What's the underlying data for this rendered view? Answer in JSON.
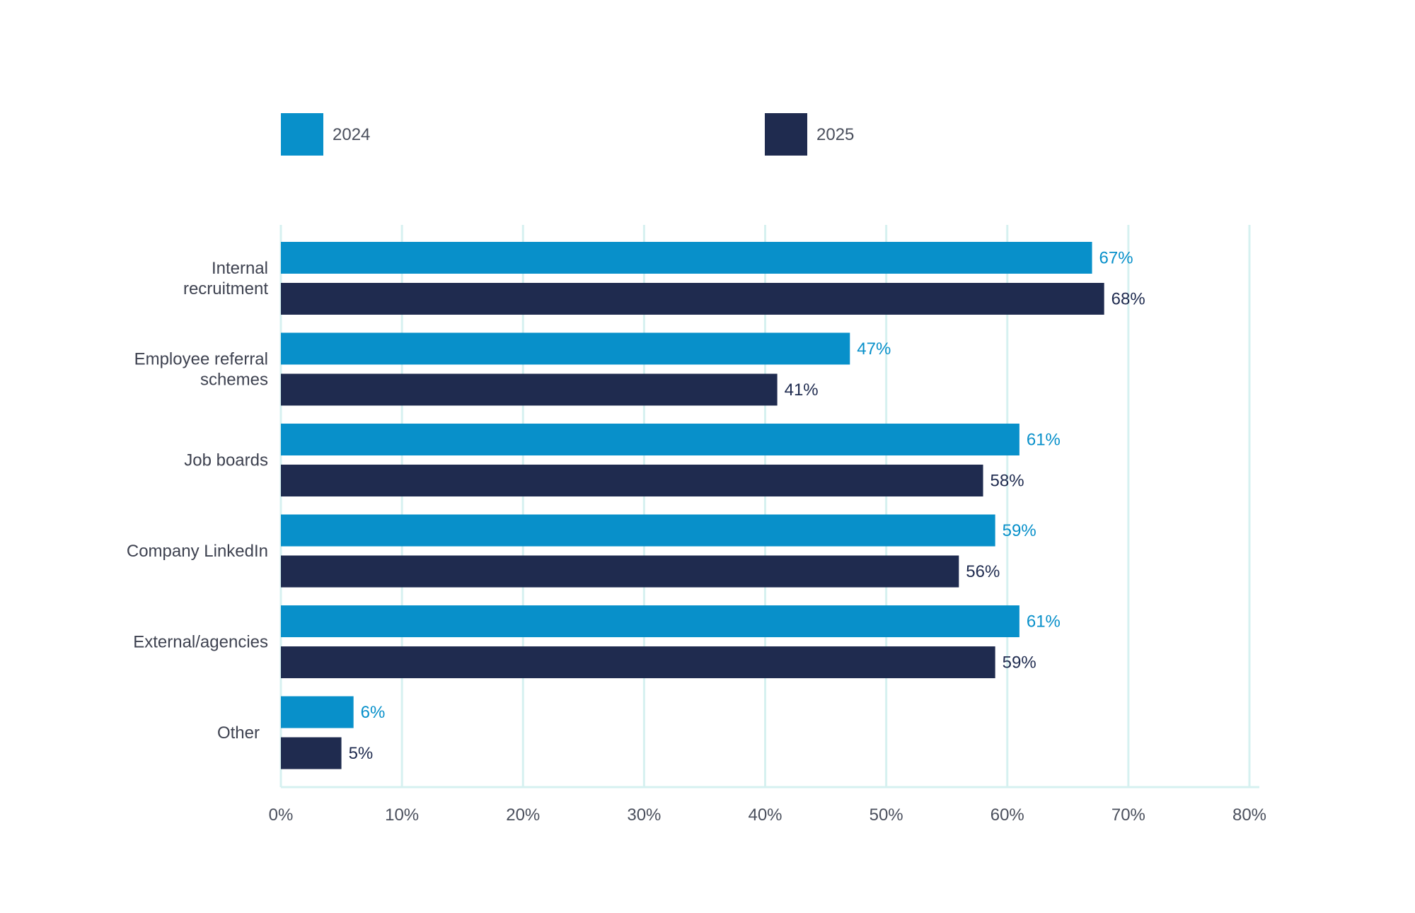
{
  "chart_data": {
    "type": "bar",
    "orientation": "horizontal",
    "categories": [
      [
        "Internal",
        "recruitment"
      ],
      [
        "Employee referral",
        "schemes"
      ],
      [
        "Job boards"
      ],
      [
        "Company LinkedIn"
      ],
      [
        "External/agencies"
      ],
      [
        "Other"
      ]
    ],
    "series": [
      {
        "name": "2024",
        "color": "#0890CA",
        "values": [
          67,
          47,
          61,
          59,
          61,
          6
        ],
        "labels": [
          "67%",
          "47%",
          "61%",
          "59%",
          "61%",
          "6%"
        ]
      },
      {
        "name": "2025",
        "color": "#1F2B4F",
        "values": [
          68,
          41,
          58,
          56,
          59,
          5
        ],
        "labels": [
          "68%",
          "41%",
          "58%",
          "56%",
          "59%",
          "5%"
        ]
      }
    ],
    "xlim": [
      0,
      80
    ],
    "x_ticks": [
      0,
      10,
      20,
      30,
      40,
      50,
      60,
      70,
      80
    ],
    "x_tick_labels": [
      "0%",
      "10%",
      "20%",
      "30%",
      "40%",
      "50%",
      "60%",
      "70%",
      "80%"
    ],
    "grid": true,
    "grid_color": "#D6F1F0",
    "tick_label_color": "#4A4F5C",
    "category_label_color": "#3E4250",
    "legend_position": "top",
    "title": "",
    "xlabel": "",
    "ylabel": ""
  }
}
